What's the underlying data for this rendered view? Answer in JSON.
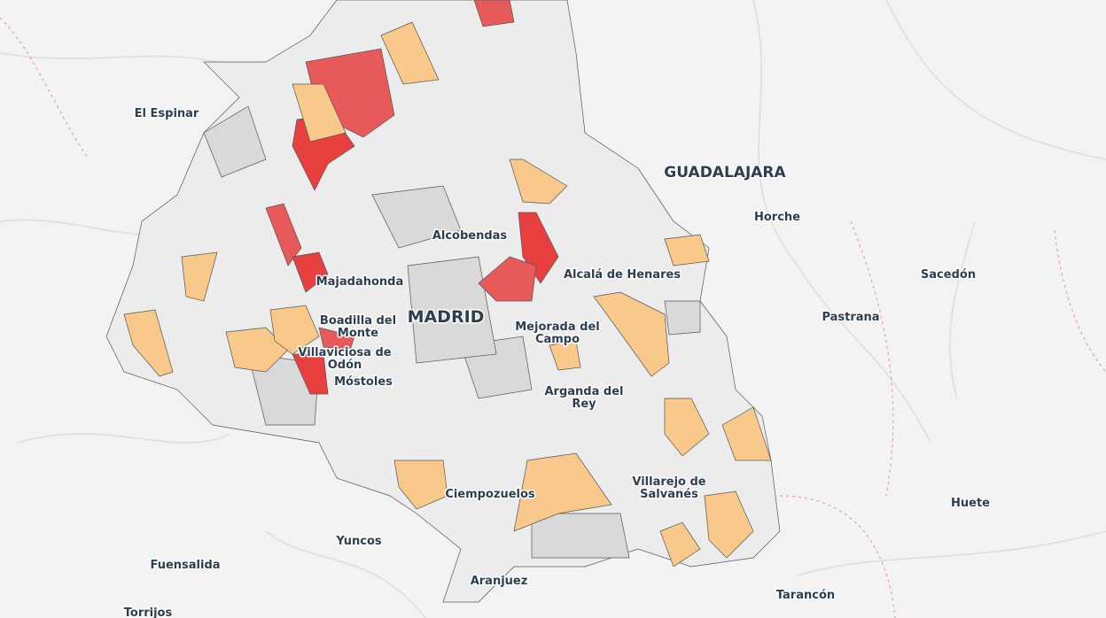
{
  "places": [
    "El Espinar",
    "GUADALAJARA",
    "Horche",
    "Alcobendas",
    "Alcalá de Henares",
    "Majadahonda",
    "MADRID",
    [
      "Boadilla del",
      "Monte"
    ],
    [
      "Mejorada del",
      "Campo"
    ],
    [
      "Villaviciosa de",
      "Odón"
    ],
    "Móstoles",
    [
      "Arganda del",
      "Rey"
    ],
    "Sacedón",
    "Pastrana",
    [
      "Villarejo de",
      "Salvanés"
    ],
    "Ciempozuelos",
    "Huete",
    "Yuncos",
    "Fuensalida",
    "Aranjuez",
    "Tarancón",
    "Torrijos"
  ]
}
